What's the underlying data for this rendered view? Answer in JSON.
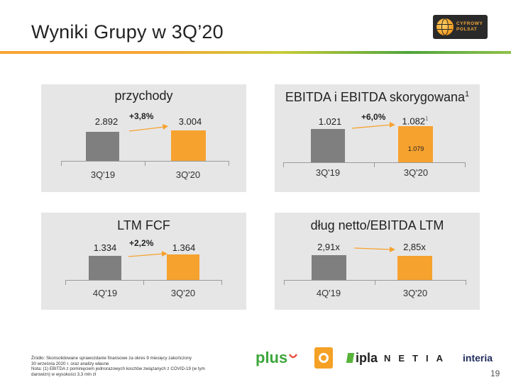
{
  "slide": {
    "title": "Wyniki Grupy w 3Q’20",
    "page_number": "19"
  },
  "logo": {
    "line1": "CYFROWY",
    "line2": "POLSAT"
  },
  "panels": [
    {
      "title": "przychody",
      "title_sup": "",
      "change": "+3,8%",
      "bars": [
        {
          "category": "3Q'19",
          "label": "2.892",
          "label_sup": "",
          "color": "#7f7f7f"
        },
        {
          "category": "3Q'20",
          "label": "3.004",
          "label_sup": "",
          "color": "#f6a22f"
        }
      ]
    },
    {
      "title": "EBITDA i EBITDA skorygowana",
      "title_sup": "1",
      "change": "+6,0%",
      "bars": [
        {
          "category": "3Q'19",
          "label": "1.021",
          "label_sup": "",
          "color": "#7f7f7f"
        },
        {
          "category": "3Q'20",
          "label": "1.082",
          "label_sup": "1",
          "inner_label": "1.079",
          "color": "#f6a22f"
        }
      ]
    },
    {
      "title": "LTM FCF",
      "title_sup": "",
      "change": "+2,2%",
      "bars": [
        {
          "category": "4Q'19",
          "label": "1.334",
          "label_sup": "",
          "color": "#7f7f7f"
        },
        {
          "category": "3Q'20",
          "label": "1.364",
          "label_sup": "",
          "color": "#f6a22f"
        }
      ]
    },
    {
      "title": "dług netto/EBITDA LTM",
      "title_sup": "",
      "change": "",
      "bars": [
        {
          "category": "4Q'19",
          "label": "2,91x",
          "label_sup": "",
          "color": "#7f7f7f"
        },
        {
          "category": "3Q'20",
          "label": "2,85x",
          "label_sup": "",
          "color": "#f6a22f"
        }
      ]
    }
  ],
  "footnote": {
    "line1": "Źródło: Skonsolidowane sprawozdanie finansowe za okres 9 miesięcy zakończony",
    "line2": "30 września 2020 r. oraz analizy własne",
    "line3": "Nota: (1) EBITDA z pominięciem jednorazowych kosztów związanych z COVID-19 (w tym",
    "line4": "darowizn) w wysokości 3,3 mln zł"
  },
  "brands": {
    "plus": "plus",
    "ipla": "ipla",
    "netia": "NETIA",
    "interia": "interia",
    "polsat": "POLSAT"
  }
}
